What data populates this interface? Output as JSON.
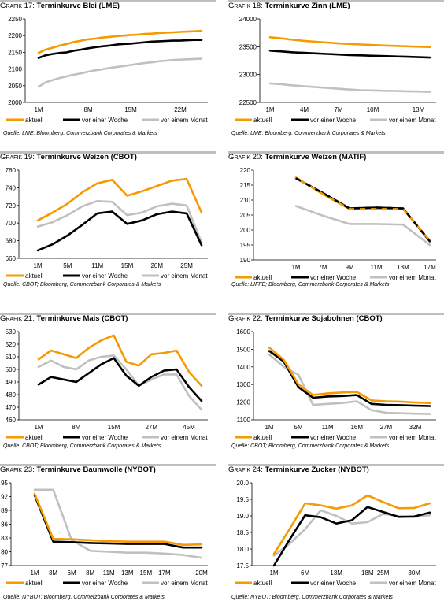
{
  "colors": {
    "aktuell": "#f59a00",
    "woche": "#000000",
    "monat": "#c0c0c0",
    "topline": "#bfbfbf"
  },
  "legend": {
    "aktuell": "aktuell",
    "woche": "vor einer Woche",
    "monat": "vor einem Monat"
  },
  "panels": [
    {
      "prefix": "Grafik 17:",
      "title": "Terminkurve Blei (LME)",
      "source": "Quelle: LME; Bloomberg, Commerzbank Corporates & Markets"
    },
    {
      "prefix": "Grafik 18:",
      "title": "Terminkurve Zinn (LME)",
      "source": "Quelle: LME; Bloomberg, Commerzbank Corporates & Markets"
    },
    {
      "prefix": "Grafik 19:",
      "title": "Terminkurve Weizen (CBOT)",
      "source": "Quelle: CBOT; Bloomberg, Commerzbank Corporates & Markets"
    },
    {
      "prefix": "Grafik 20:",
      "title": "Terminkurve Weizen (MATIF)",
      "source": "Quelle: LIFFE; Bloomberg, Commerzbank Corporates & Markets"
    },
    {
      "prefix": "Grafik 21:",
      "title": "Terminkurve Mais (CBOT)",
      "source": "Quelle: CBOT; Bloomberg, Commerzbank Corporates & Markets"
    },
    {
      "prefix": "Grafik 22:",
      "title": "Terminkurve Sojabohnen (CBOT)",
      "source": "Quelle: CBOT; Bloomberg, Commerzbank Corporates & Markets"
    },
    {
      "prefix": "Grafik 23:",
      "title": "Terminkurve Baumwolle (NYBOT)",
      "source": "Quelle: NYBOT; Bloomberg, Commerzbank Corporates & Markets"
    },
    {
      "prefix": "Grafik 24:",
      "title": "Terminkurve Zucker (NYBOT)",
      "source": "Quelle: NYBOT; Bloomberg, Commerzbank Corporates & Markets"
    }
  ],
  "chart_data": [
    {
      "type": "line",
      "title": "Terminkurve Blei (LME)",
      "ylim": [
        2000,
        2250
      ],
      "yticks": [
        "2000",
        "2050",
        "2100",
        "2150",
        "2200",
        "2250"
      ],
      "xticks": [
        "1M",
        "8M",
        "15M",
        "22M"
      ],
      "series": [
        {
          "name": "aktuell",
          "values": [
            2148,
            2158,
            2164,
            2170,
            2175,
            2181,
            2185,
            2189,
            2191,
            2194,
            2196,
            2198,
            2200,
            2202,
            2203,
            2205,
            2206,
            2208,
            2209,
            2210,
            2211,
            2212,
            2213,
            2214
          ]
        },
        {
          "name": "vor einer Woche",
          "values": [
            2133,
            2141,
            2145,
            2148,
            2150,
            2155,
            2158,
            2162,
            2165,
            2168,
            2170,
            2173,
            2175,
            2176,
            2178,
            2180,
            2182,
            2183,
            2184,
            2185,
            2185,
            2186,
            2187,
            2187
          ]
        },
        {
          "name": "vor einem Monat",
          "values": [
            2047,
            2060,
            2067,
            2073,
            2078,
            2083,
            2087,
            2092,
            2096,
            2099,
            2103,
            2106,
            2109,
            2112,
            2115,
            2118,
            2120,
            2123,
            2125,
            2127,
            2128,
            2129,
            2130,
            2131
          ]
        }
      ]
    },
    {
      "type": "line",
      "title": "Terminkurve Zinn (LME)",
      "ylim": [
        22500,
        24000
      ],
      "yticks": [
        "22500",
        "23000",
        "23500",
        "24000"
      ],
      "xticks": [
        "1M",
        "4M",
        "7M",
        "10M",
        "13M"
      ],
      "series": [
        {
          "name": "aktuell",
          "values": [
            23670,
            23650,
            23625,
            23605,
            23590,
            23575,
            23560,
            23550,
            23540,
            23530,
            23522,
            23515,
            23508,
            23500,
            23495
          ]
        },
        {
          "name": "vor einer Woche",
          "values": [
            23430,
            23415,
            23400,
            23390,
            23380,
            23370,
            23360,
            23350,
            23345,
            23338,
            23332,
            23325,
            23320,
            23312,
            23305
          ]
        },
        {
          "name": "vor einem Monat",
          "values": [
            22840,
            22825,
            22805,
            22790,
            22775,
            22760,
            22745,
            22730,
            22720,
            22715,
            22708,
            22705,
            22700,
            22695,
            22690
          ]
        }
      ]
    },
    {
      "type": "line",
      "title": "Terminkurve Weizen (CBOT)",
      "ylim": [
        660,
        760
      ],
      "yticks": [
        "660",
        "680",
        "700",
        "720",
        "740",
        "760"
      ],
      "xticks": [
        "1M",
        "5M",
        "11M",
        "15M",
        "20M",
        "25M"
      ],
      "series": [
        {
          "name": "aktuell",
          "values": [
            703,
            712,
            722,
            735,
            745,
            749,
            731,
            736,
            742,
            748,
            750,
            712
          ]
        },
        {
          "name": "vor einer Woche",
          "values": [
            669,
            676,
            686,
            698,
            711,
            713,
            699,
            703,
            710,
            713,
            711,
            675
          ]
        },
        {
          "name": "vor einem Monat",
          "values": [
            696,
            701,
            709,
            719,
            725,
            724,
            709,
            712,
            719,
            722,
            720,
            678
          ]
        }
      ]
    },
    {
      "type": "line",
      "title": "Terminkurve Weizen (MATIF)",
      "ylim": [
        190,
        220
      ],
      "yticks": [
        "190",
        "195",
        "200",
        "205",
        "210",
        "215",
        "220"
      ],
      "xticks": [
        "1M",
        "7M",
        "9M",
        "11M",
        "13M",
        "17M"
      ],
      "series": [
        {
          "name": "aktuell",
          "values": [
            217.5,
            212.0,
            207.0,
            207.0,
            207.0,
            196.5
          ]
        },
        {
          "name": "vor einer Woche",
          "values": [
            217.3,
            212.4,
            207.2,
            207.5,
            207.2,
            196.2
          ]
        },
        {
          "name": "vor einem Monat",
          "values": [
            208.0,
            204.8,
            202.0,
            202.0,
            201.8,
            195.0
          ]
        }
      ]
    },
    {
      "type": "line",
      "title": "Terminkurve Mais (CBOT)",
      "ylim": [
        460,
        530
      ],
      "yticks": [
        "460",
        "470",
        "480",
        "490",
        "500",
        "510",
        "520",
        "530"
      ],
      "xticks": [
        "1M",
        "8M",
        "15M",
        "27M",
        "45M"
      ],
      "series": [
        {
          "name": "aktuell",
          "values": [
            508,
            515,
            512,
            509,
            517,
            523,
            527,
            506,
            503,
            512,
            513,
            515,
            498,
            487
          ]
        },
        {
          "name": "vor einer Woche",
          "values": [
            488,
            494,
            492,
            490,
            497,
            504,
            509,
            495,
            487,
            494,
            499,
            500,
            486,
            475
          ]
        },
        {
          "name": "vor einem Monat",
          "values": [
            502,
            507,
            502,
            500,
            507,
            510,
            511,
            500,
            487,
            492,
            496,
            496,
            479,
            468
          ]
        }
      ]
    },
    {
      "type": "line",
      "title": "Terminkurve Sojabohnen (CBOT)",
      "ylim": [
        1100,
        1600
      ],
      "yticks": [
        "1100",
        "1200",
        "1300",
        "1400",
        "1500",
        "1600"
      ],
      "xticks": [
        "1M",
        "5M",
        "11M",
        "16M",
        "27M",
        "32M"
      ],
      "series": [
        {
          "name": "aktuell",
          "values": [
            1510,
            1440,
            1300,
            1240,
            1250,
            1255,
            1258,
            1210,
            1205,
            1203,
            1198,
            1195
          ]
        },
        {
          "name": "vor einer Woche",
          "values": [
            1490,
            1430,
            1285,
            1225,
            1232,
            1235,
            1240,
            1190,
            1185,
            1183,
            1180,
            1178
          ]
        },
        {
          "name": "vor einem Monat",
          "values": [
            1470,
            1400,
            1355,
            1185,
            1190,
            1195,
            1205,
            1155,
            1140,
            1137,
            1135,
            1133
          ]
        }
      ]
    },
    {
      "type": "line",
      "title": "Terminkurve Baumwolle (NYBOT)",
      "ylim": [
        77,
        95
      ],
      "yticks": [
        "77",
        "80",
        "83",
        "86",
        "89",
        "92",
        "95"
      ],
      "xticks": [
        "1M",
        "3M",
        "6M",
        "8M",
        "11M",
        "13M",
        "15M",
        "17M",
        "20M"
      ],
      "series": [
        {
          "name": "aktuell",
          "values": [
            92.6,
            82.8,
            82.7,
            82.5,
            82.3,
            82.2,
            82.2,
            82.2,
            81.5,
            81.6
          ]
        },
        {
          "name": "vor einer Woche",
          "values": [
            92.3,
            82.2,
            82.1,
            81.9,
            81.8,
            81.7,
            81.7,
            81.7,
            80.9,
            80.9
          ]
        },
        {
          "name": "vor einem Monat",
          "values": [
            93.5,
            93.5,
            82.5,
            80.2,
            80.0,
            79.8,
            79.8,
            79.6,
            79.3,
            78.7
          ]
        }
      ]
    },
    {
      "type": "line",
      "title": "Terminkurve Zucker (NYBOT)",
      "ylim": [
        17.5,
        20.0
      ],
      "yticks": [
        "17.5",
        "18.0",
        "18.5",
        "19.0",
        "19.5",
        "20.0"
      ],
      "xticks": [
        "1M",
        "6M",
        "13M",
        "18M",
        "25M",
        "30M"
      ],
      "series": [
        {
          "name": "aktuell",
          "values": [
            17.85,
            18.6,
            19.38,
            19.32,
            19.22,
            19.32,
            19.62,
            19.42,
            19.23,
            19.24,
            19.38
          ]
        },
        {
          "name": "vor einer Woche",
          "values": [
            17.5,
            18.28,
            19.02,
            18.96,
            18.77,
            18.87,
            19.27,
            19.12,
            18.97,
            18.98,
            19.1
          ]
        },
        {
          "name": "vor einem Monat",
          "values": [
            17.8,
            18.16,
            18.6,
            19.17,
            19.0,
            18.77,
            18.81,
            19.06,
            18.99,
            18.97,
            19.02
          ]
        }
      ]
    }
  ]
}
